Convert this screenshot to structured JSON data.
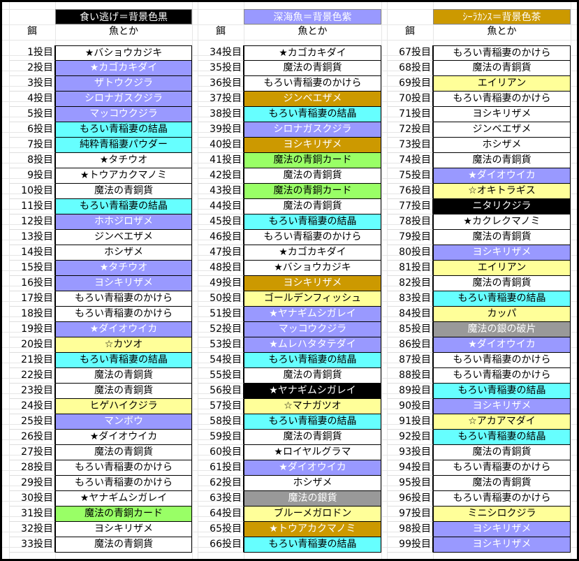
{
  "legend": [
    {
      "label": "食い逃げ＝背景色黒",
      "color": "black"
    },
    {
      "label": "深海魚＝背景色紫",
      "color": "purple"
    },
    {
      "label": "ｼｰﾗｶﾝｽ＝背景色茶",
      "color": "gold"
    }
  ],
  "column_headers": {
    "bait": "餌",
    "fish": "魚とか"
  },
  "color_map": {
    "white": "#ffffff",
    "purple": "#9999ff",
    "cyan": "#66ffff",
    "gold": "#cc9900",
    "yellow": "#ffff99",
    "green": "#99ff66",
    "black": "#000000",
    "gray": "#999999"
  },
  "columns": [
    [
      {
        "n": "1投目",
        "fish": "★バショウカジキ",
        "c": "white"
      },
      {
        "n": "2投目",
        "fish": "★カゴカキダイ",
        "c": "purple"
      },
      {
        "n": "3投目",
        "fish": "ザトウクジラ",
        "c": "purple"
      },
      {
        "n": "4投目",
        "fish": "シロナガスクジラ",
        "c": "purple"
      },
      {
        "n": "5投目",
        "fish": "マッコウクジラ",
        "c": "purple"
      },
      {
        "n": "6投目",
        "fish": "もろい青稲妻の結晶",
        "c": "cyan"
      },
      {
        "n": "7投目",
        "fish": "純粋青稲妻パウダー",
        "c": "cyan"
      },
      {
        "n": "8投目",
        "fish": "★タチウオ",
        "c": "white"
      },
      {
        "n": "9投目",
        "fish": "★トウアカクマノミ",
        "c": "white"
      },
      {
        "n": "10投目",
        "fish": "魔法の青銅貨",
        "c": "white"
      },
      {
        "n": "11投目",
        "fish": "もろい青稲妻の結晶",
        "c": "cyan"
      },
      {
        "n": "12投目",
        "fish": "ホホジロザメ",
        "c": "purple"
      },
      {
        "n": "13投目",
        "fish": "ジンベエザメ",
        "c": "white"
      },
      {
        "n": "14投目",
        "fish": "ホシザメ",
        "c": "white"
      },
      {
        "n": "15投目",
        "fish": "★タチウオ",
        "c": "purple"
      },
      {
        "n": "16投目",
        "fish": "ヨシキリザメ",
        "c": "purple"
      },
      {
        "n": "17投目",
        "fish": "もろい青稲妻のかけら",
        "c": "white"
      },
      {
        "n": "18投目",
        "fish": "もろい青稲妻のかけら",
        "c": "white"
      },
      {
        "n": "19投目",
        "fish": "★ダイオウイカ",
        "c": "purple"
      },
      {
        "n": "20投目",
        "fish": "☆カツオ",
        "c": "yellow"
      },
      {
        "n": "21投目",
        "fish": "もろい青稲妻の結晶",
        "c": "cyan"
      },
      {
        "n": "22投目",
        "fish": "魔法の青銅貨",
        "c": "white"
      },
      {
        "n": "23投目",
        "fish": "魔法の青銅貨",
        "c": "white"
      },
      {
        "n": "24投目",
        "fish": "ヒゲハイクジラ",
        "c": "yellow"
      },
      {
        "n": "25投目",
        "fish": "マンボウ",
        "c": "purple"
      },
      {
        "n": "26投目",
        "fish": "★ダイオウイカ",
        "c": "white"
      },
      {
        "n": "27投目",
        "fish": "魔法の青銅貨",
        "c": "white"
      },
      {
        "n": "28投目",
        "fish": "もろい青稲妻のかけら",
        "c": "white"
      },
      {
        "n": "29投目",
        "fish": "もろい青稲妻のかけら",
        "c": "white"
      },
      {
        "n": "30投目",
        "fish": "★ヤナギムシガレイ",
        "c": "white"
      },
      {
        "n": "31投目",
        "fish": "魔法の青銅カード",
        "c": "green"
      },
      {
        "n": "32投目",
        "fish": "ヨシキリザメ",
        "c": "white"
      },
      {
        "n": "33投目",
        "fish": "魔法の青銅貨",
        "c": "white"
      }
    ],
    [
      {
        "n": "34投目",
        "fish": "★カゴカキダイ",
        "c": "white"
      },
      {
        "n": "35投目",
        "fish": "魔法の青銅貨",
        "c": "white"
      },
      {
        "n": "36投目",
        "fish": "もろい青稲妻のかけら",
        "c": "white"
      },
      {
        "n": "37投目",
        "fish": "ジンベエザメ",
        "c": "gold"
      },
      {
        "n": "38投目",
        "fish": "もろい青稲妻の結晶",
        "c": "cyan"
      },
      {
        "n": "39投目",
        "fish": "シロナガスクジラ",
        "c": "purple"
      },
      {
        "n": "40投目",
        "fish": "ヨシキリザメ",
        "c": "gold"
      },
      {
        "n": "41投目",
        "fish": "魔法の青銅カード",
        "c": "green"
      },
      {
        "n": "42投目",
        "fish": "魔法の青銅貨",
        "c": "white"
      },
      {
        "n": "43投目",
        "fish": "魔法の青銅カード",
        "c": "green"
      },
      {
        "n": "44投目",
        "fish": "魔法の青銅貨",
        "c": "white"
      },
      {
        "n": "45投目",
        "fish": "もろい青稲妻の結晶",
        "c": "cyan"
      },
      {
        "n": "46投目",
        "fish": "もろい青稲妻のかけら",
        "c": "white"
      },
      {
        "n": "47投目",
        "fish": "★カゴカキダイ",
        "c": "white"
      },
      {
        "n": "48投目",
        "fish": "★バショウカジキ",
        "c": "white"
      },
      {
        "n": "49投目",
        "fish": "ヨシキリザメ",
        "c": "gold"
      },
      {
        "n": "50投目",
        "fish": "ゴールデンフィッシュ",
        "c": "yellow"
      },
      {
        "n": "51投目",
        "fish": "★ヤナギムシガレイ",
        "c": "purple"
      },
      {
        "n": "52投目",
        "fish": "マッコウクジラ",
        "c": "purple"
      },
      {
        "n": "53投目",
        "fish": "★ムレハタタテダイ",
        "c": "purple"
      },
      {
        "n": "54投目",
        "fish": "もろい青稲妻の結晶",
        "c": "cyan"
      },
      {
        "n": "55投目",
        "fish": "魔法の青銅貨",
        "c": "white"
      },
      {
        "n": "56投目",
        "fish": "★ヤナギムシガレイ",
        "c": "black"
      },
      {
        "n": "57投目",
        "fish": "☆マナガツオ",
        "c": "yellow"
      },
      {
        "n": "58投目",
        "fish": "もろい青稲妻の結晶",
        "c": "cyan"
      },
      {
        "n": "59投目",
        "fish": "魔法の青銅貨",
        "c": "white"
      },
      {
        "n": "60投目",
        "fish": "★ロイヤルグラマ",
        "c": "white"
      },
      {
        "n": "61投目",
        "fish": "★ダイオウイカ",
        "c": "purple"
      },
      {
        "n": "62投目",
        "fish": "ホシザメ",
        "c": "white"
      },
      {
        "n": "63投目",
        "fish": "魔法の銀貨",
        "c": "gray"
      },
      {
        "n": "64投目",
        "fish": "ブルーメガロドン",
        "c": "yellow"
      },
      {
        "n": "65投目",
        "fish": "★トウアカクマノミ",
        "c": "gold"
      },
      {
        "n": "66投目",
        "fish": "もろい青稲妻の結晶",
        "c": "cyan"
      }
    ],
    [
      {
        "n": "67投目",
        "fish": "もろい青稲妻のかけら",
        "c": "white"
      },
      {
        "n": "68投目",
        "fish": "魔法の青銅貨",
        "c": "white"
      },
      {
        "n": "69投目",
        "fish": "エイリアン",
        "c": "yellow"
      },
      {
        "n": "70投目",
        "fish": "もろい青稲妻のかけら",
        "c": "white"
      },
      {
        "n": "71投目",
        "fish": "ヨシキリザメ",
        "c": "white"
      },
      {
        "n": "72投目",
        "fish": "ジンベエザメ",
        "c": "white"
      },
      {
        "n": "73投目",
        "fish": "ホシザメ",
        "c": "white"
      },
      {
        "n": "74投目",
        "fish": "魔法の青銅貨",
        "c": "white"
      },
      {
        "n": "75投目",
        "fish": "★ダイオウイカ",
        "c": "purple"
      },
      {
        "n": "76投目",
        "fish": "☆オキトラギス",
        "c": "yellow"
      },
      {
        "n": "77投目",
        "fish": "ニタリクジラ",
        "c": "black"
      },
      {
        "n": "78投目",
        "fish": "★カクレクマノミ",
        "c": "white"
      },
      {
        "n": "79投目",
        "fish": "魔法の青銅貨",
        "c": "white"
      },
      {
        "n": "80投目",
        "fish": "ヨシキリザメ",
        "c": "purple"
      },
      {
        "n": "81投目",
        "fish": "エイリアン",
        "c": "yellow"
      },
      {
        "n": "82投目",
        "fish": "魔法の青銅貨",
        "c": "white"
      },
      {
        "n": "83投目",
        "fish": "もろい青稲妻の結晶",
        "c": "cyan"
      },
      {
        "n": "84投目",
        "fish": "カッパ",
        "c": "yellow"
      },
      {
        "n": "85投目",
        "fish": "魔法の銀の破片",
        "c": "gray"
      },
      {
        "n": "86投目",
        "fish": "★ダイオウイカ",
        "c": "purple"
      },
      {
        "n": "87投目",
        "fish": "もろい青稲妻のかけら",
        "c": "white"
      },
      {
        "n": "88投目",
        "fish": "もろい青稲妻のかけら",
        "c": "white"
      },
      {
        "n": "89投目",
        "fish": "もろい青稲妻の結晶",
        "c": "cyan"
      },
      {
        "n": "90投目",
        "fish": "ヨシキリザメ",
        "c": "purple"
      },
      {
        "n": "91投目",
        "fish": "☆アカアマダイ",
        "c": "yellow"
      },
      {
        "n": "92投目",
        "fish": "もろい青稲妻の結晶",
        "c": "cyan"
      },
      {
        "n": "93投目",
        "fish": "魔法の青銅貨",
        "c": "white"
      },
      {
        "n": "94投目",
        "fish": "もろい青稲妻のかけら",
        "c": "white"
      },
      {
        "n": "95投目",
        "fish": "魔法の青銅貨",
        "c": "white"
      },
      {
        "n": "96投目",
        "fish": "もろい青稲妻のかけら",
        "c": "white"
      },
      {
        "n": "97投目",
        "fish": "ミニシロクジラ",
        "c": "yellow"
      },
      {
        "n": "98投目",
        "fish": "ヨシキリザメ",
        "c": "purple"
      },
      {
        "n": "99投目",
        "fish": "ヨシキリザメ",
        "c": "purple"
      }
    ]
  ]
}
